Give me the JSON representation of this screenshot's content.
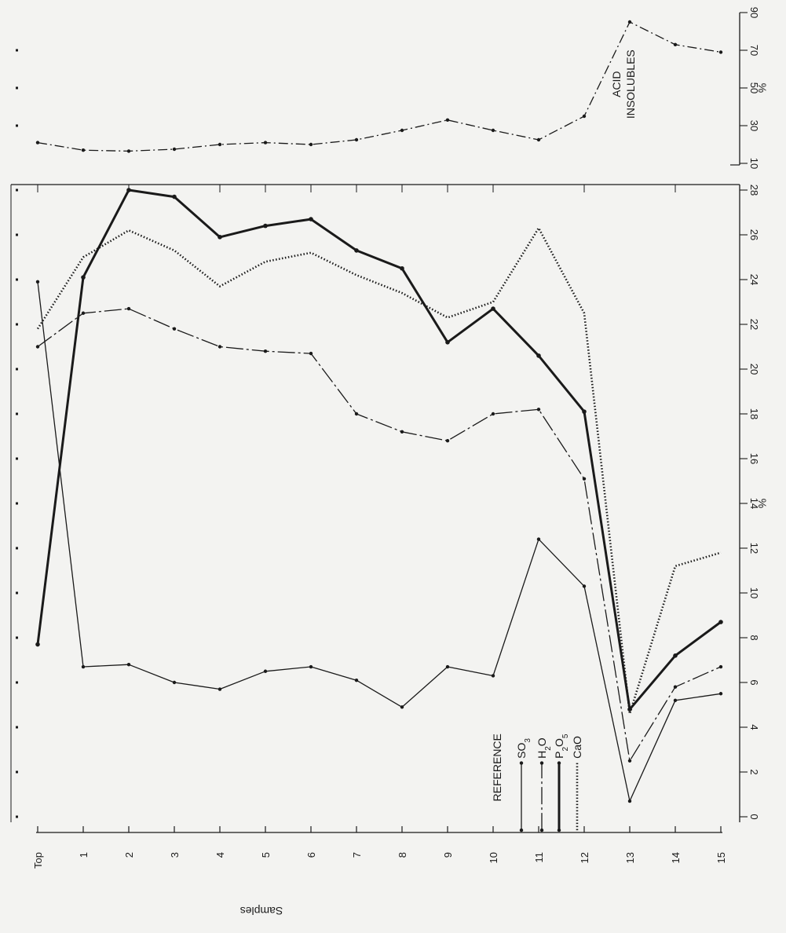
{
  "chart_data": [
    {
      "id": "main",
      "type": "line",
      "orientation": "rotated-90-clockwise",
      "categories": [
        "Top",
        "1",
        "2",
        "3",
        "4",
        "5",
        "6",
        "7",
        "8",
        "9",
        "10",
        "11",
        "12",
        "13",
        "14",
        "15"
      ],
      "xlabel": "Samples",
      "ylabel": "%",
      "ylim": [
        -2,
        28
      ],
      "ytick_values": [
        0,
        2,
        4,
        6,
        8,
        10,
        12,
        14,
        16,
        18,
        20,
        22,
        24,
        26,
        28
      ],
      "ytick_labels": [
        "0",
        "2",
        "4",
        "6",
        "8",
        "10",
        "12",
        "14",
        "16",
        "18",
        "20",
        "22",
        "24",
        "26",
        "28"
      ],
      "legend": {
        "title": "REFERENCE",
        "placement": "bottom-center",
        "entries": [
          {
            "label": "SO",
            "sub": "3",
            "series": 0
          },
          {
            "label": "H",
            "sub": "2",
            "label_tail": "O",
            "series": 1
          },
          {
            "label": "P",
            "sub": "2",
            "label_tail": "O",
            "sub2": "5",
            "series": 2
          },
          {
            "label": "CaO",
            "series": 3
          }
        ]
      },
      "series": [
        {
          "name": "SO3",
          "style": "solid-thin",
          "color": "#1a1a1a",
          "values": [
            23.9,
            6.7,
            6.8,
            6.0,
            5.7,
            6.5,
            6.7,
            6.1,
            4.9,
            6.7,
            6.3,
            12.4,
            10.3,
            0.7,
            5.2,
            5.5
          ]
        },
        {
          "name": "H2O",
          "style": "long-dash",
          "color": "#1a1a1a",
          "values": [
            21.0,
            22.5,
            22.7,
            21.8,
            21.0,
            20.8,
            20.7,
            18.0,
            17.2,
            16.8,
            18.0,
            18.2,
            15.1,
            2.5,
            5.8,
            6.7
          ]
        },
        {
          "name": "P2O5",
          "style": "solid-thick",
          "color": "#1a1a1a",
          "values": [
            7.7,
            24.1,
            28.0,
            27.7,
            25.9,
            26.4,
            26.7,
            25.3,
            24.5,
            21.2,
            22.7,
            20.6,
            18.1,
            4.8,
            7.2,
            8.7
          ]
        },
        {
          "name": "CaO",
          "style": "dotted",
          "color": "#1a1a1a",
          "values": [
            21.8,
            25.0,
            26.2,
            25.3,
            23.7,
            24.8,
            25.2,
            24.2,
            23.4,
            22.3,
            23.0,
            26.3,
            22.5,
            4.6,
            11.2,
            11.8
          ]
        }
      ]
    },
    {
      "id": "acid",
      "type": "line",
      "orientation": "rotated-90-clockwise",
      "categories": [
        "Top",
        "1",
        "2",
        "3",
        "4",
        "5",
        "6",
        "7",
        "8",
        "9",
        "10",
        "11",
        "12",
        "13",
        "14",
        "15"
      ],
      "ylabel": "%",
      "ylim": [
        10,
        90
      ],
      "ytick_values": [
        10,
        30,
        50,
        70,
        90
      ],
      "ytick_labels": [
        "10",
        "30",
        "50",
        "70",
        "90"
      ],
      "annotation": [
        "ACID",
        "INSOLUBLES"
      ],
      "series": [
        {
          "name": "ACID INSOLUBLES",
          "style": "dash-dot",
          "color": "#1a1a1a",
          "values": [
            21,
            17,
            16.5,
            17.5,
            20,
            21,
            20,
            22.5,
            27.5,
            33,
            27.5,
            22.5,
            35,
            85,
            73,
            69
          ]
        }
      ]
    }
  ]
}
